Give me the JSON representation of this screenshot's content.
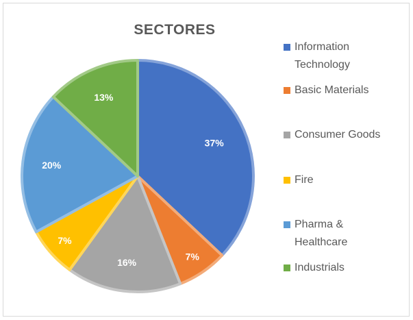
{
  "chart_data": {
    "type": "pie",
    "title": "SECTORES",
    "categories": [
      "Information Technology",
      "Basic Materials",
      "Consumer Goods",
      "Fire",
      "Pharma & Healthcare",
      "Industrials"
    ],
    "values": [
      37,
      7,
      16,
      7,
      20,
      13
    ],
    "data_labels": [
      "37%",
      "7%",
      "16%",
      "7%",
      "20%",
      "13%"
    ],
    "legend_labels": [
      [
        "Information",
        "Technology"
      ],
      [
        "Basic Materials"
      ],
      [
        "Consumer Goods"
      ],
      [
        "Fire"
      ],
      [
        "Pharma &",
        "Healthcare"
      ],
      [
        "Industrials"
      ]
    ],
    "colors": [
      "#4472c4",
      "#ed7d31",
      "#a5a5a5",
      "#ffc000",
      "#5b9bd5",
      "#70ad47"
    ],
    "legend_position": "right"
  }
}
